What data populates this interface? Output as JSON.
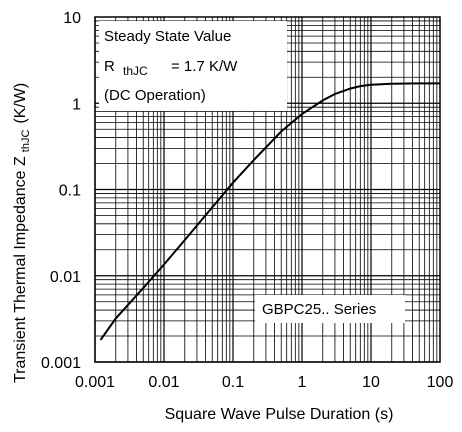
{
  "chart_data": {
    "type": "line",
    "xscale": "log",
    "yscale": "log",
    "xlim": [
      0.001,
      100
    ],
    "ylim": [
      0.001,
      10
    ],
    "xlabel": "Square Wave Pulse Duration (s)",
    "ylabel_main": "Transient Thermal Impedance Z",
    "ylabel_sub": "thJC",
    "ylabel_unit": "(K/W)",
    "xticks": [
      0.001,
      0.01,
      0.1,
      1,
      10,
      100
    ],
    "xtick_labels": [
      "0.001",
      "0.01",
      "0.1",
      "1",
      "10",
      "100"
    ],
    "yticks": [
      0.001,
      0.01,
      0.1,
      1,
      10
    ],
    "ytick_labels": [
      "0.001",
      "0.01",
      "0.1",
      "1",
      "10"
    ],
    "grid": true,
    "series": [
      {
        "x": [
          0.0012,
          0.002,
          0.005,
          0.01,
          0.02,
          0.05,
          0.1,
          0.2,
          0.5,
          1,
          2,
          3,
          5,
          7,
          10,
          20,
          50,
          100
        ],
        "y": [
          0.0018,
          0.0032,
          0.0072,
          0.0135,
          0.026,
          0.062,
          0.12,
          0.22,
          0.47,
          0.75,
          1.08,
          1.28,
          1.48,
          1.58,
          1.64,
          1.68,
          1.7,
          1.7
        ]
      }
    ],
    "annotations": {
      "steady_line1": "Steady State Value",
      "steady_r": "R",
      "steady_r_sub": "thJC",
      "steady_r_value": "= 1.7 K/W",
      "steady_line3": "(DC Operation)",
      "series_label": "GBPC25.. Series"
    }
  }
}
